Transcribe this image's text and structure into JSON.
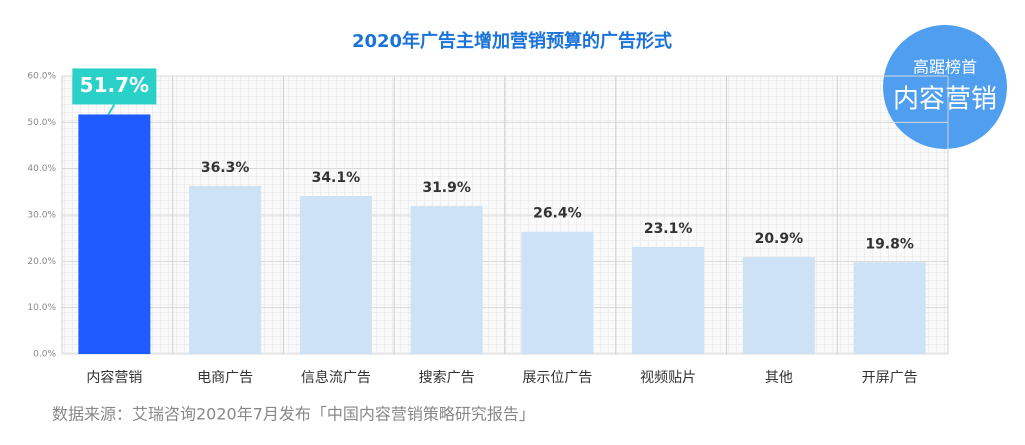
{
  "chart_data": {
    "type": "bar",
    "title": "2020年广告主增加营销预算的广告形式",
    "categories": [
      "内容营销",
      "电商广告",
      "信息流广告",
      "搜索广告",
      "展示位广告",
      "视频贴片",
      "其他",
      "开屏广告"
    ],
    "values": [
      51.7,
      36.3,
      34.1,
      31.9,
      26.4,
      23.1,
      20.9,
      19.8
    ],
    "value_labels": [
      "51.7%",
      "36.3%",
      "34.1%",
      "31.9%",
      "26.4%",
      "23.1%",
      "20.9%",
      "19.8%"
    ],
    "colors": [
      "#1f5cff",
      "#cde2f5",
      "#cde2f5",
      "#cde2f5",
      "#cde2f5",
      "#cde2f5",
      "#cde2f5",
      "#cde2f5"
    ],
    "ylim": [
      0,
      60
    ],
    "yticks": [
      {
        "value": 0,
        "label": "0.0%"
      },
      {
        "value": 10,
        "label": "10.0%"
      },
      {
        "value": 20,
        "label": "20.0%"
      },
      {
        "value": 30,
        "label": "30.0%"
      },
      {
        "value": 40,
        "label": "40.0%"
      },
      {
        "value": 50,
        "label": "50.0%"
      },
      {
        "value": 60,
        "label": "60.0%"
      }
    ],
    "grid": true,
    "annotations": [
      "高踞榜首",
      "内容营销"
    ],
    "source": "数据来源：艾瑞咨询2020年7月发布「中国内容营销策略研究报告」"
  }
}
